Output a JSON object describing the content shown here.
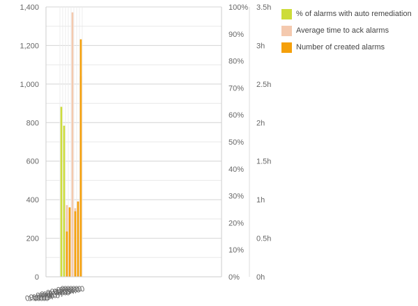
{
  "chart_data": {
    "type": "bar",
    "categories": [
      "09-06",
      "10-06",
      "11-06",
      "12-06",
      "01-07",
      "02-07",
      "03-07",
      "04-07"
    ],
    "category_tick_labels": [
      "09:00",
      "10:00",
      "11:00",
      "12:00",
      "01:00",
      "02:00",
      "03:00",
      "04:00"
    ],
    "series": [
      {
        "name": "% of alarms with auto remediation",
        "color": "#cddc39",
        "axis": "pct",
        "values": [
          63,
          56,
          0,
          0,
          0,
          0,
          0,
          0
        ]
      },
      {
        "name": "Average time to ack alarms",
        "color": "#f4c9ae",
        "axis": "hours",
        "values": [
          0,
          0,
          0.93,
          0.9,
          3.43,
          0.89,
          0.98,
          2.6
        ]
      },
      {
        "name": "Number of created alarms",
        "color": "#f5a00a",
        "axis": "count",
        "values": [
          0,
          0,
          235,
          360,
          0,
          340,
          390,
          1232
        ]
      }
    ],
    "axes": {
      "count": {
        "min": 0,
        "max": 1400,
        "ticks": [
          "0",
          "200",
          "400",
          "600",
          "800",
          "1,000",
          "1,200",
          "1,400"
        ]
      },
      "pct": {
        "min": 0,
        "max": 100,
        "ticks": [
          "0%",
          "10%",
          "20%",
          "30%",
          "40%",
          "50%",
          "60%",
          "70%",
          "80%",
          "90%",
          "100%"
        ]
      },
      "hours": {
        "min": 0,
        "max": 3.5,
        "ticks": [
          "0h",
          "0.5h",
          "1h",
          "1.5h",
          "2h",
          "2.5h",
          "3h",
          "3.5h"
        ]
      }
    },
    "title": "",
    "xlabel": "",
    "ylabel": "",
    "legend_position": "top-right",
    "grid": true
  }
}
